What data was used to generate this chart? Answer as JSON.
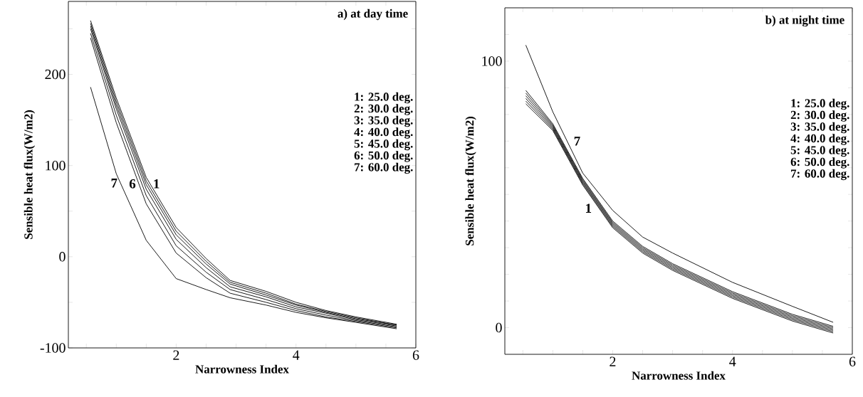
{
  "chart_data": [
    {
      "type": "line",
      "title": "a) at day time",
      "xlabel": "Narrowness Index",
      "ylabel": "Sensible heat flux(W/m2)",
      "xlim": [
        0.2,
        6
      ],
      "ylim": [
        -100,
        280
      ],
      "xticks": [
        {
          "value": 0.5,
          "label": null
        },
        {
          "value": 1,
          "label": null
        },
        {
          "value": 1.5,
          "label": null
        },
        2,
        {
          "value": 2.5,
          "label": null
        },
        {
          "value": 3,
          "label": null
        },
        {
          "value": 3.5,
          "label": null
        },
        4,
        {
          "value": 4.5,
          "label": null
        },
        {
          "value": 5,
          "label": null
        },
        {
          "value": 5.5,
          "label": null
        },
        6
      ],
      "yticks": [
        -100,
        {
          "value": -50,
          "label": null
        },
        0,
        {
          "value": 50,
          "label": null
        },
        100,
        {
          "value": 150,
          "label": null
        },
        200,
        {
          "value": 250,
          "label": null
        }
      ],
      "x": [
        0.57,
        1.0,
        1.5,
        2.0,
        2.5,
        2.9,
        3.5,
        4.0,
        4.5,
        5.0,
        5.68
      ],
      "series": [
        {
          "color": "#000000",
          "values": [
            259,
            174,
            87,
            32,
            -2,
            -26,
            -38,
            -50,
            -59,
            -66,
            -74
          ]
        },
        {
          "color": "#000000",
          "values": [
            256,
            170,
            83,
            28,
            -5,
            -28,
            -40,
            -52,
            -60,
            -67,
            -75
          ]
        },
        {
          "color": "#000000",
          "values": [
            253,
            166,
            79,
            24,
            -8,
            -30,
            -42,
            -53,
            -61,
            -68,
            -75
          ]
        },
        {
          "color": "#000000",
          "values": [
            250,
            162,
            74,
            19,
            -12,
            -33,
            -44,
            -55,
            -62,
            -69,
            -76
          ]
        },
        {
          "color": "#000000",
          "values": [
            245,
            155,
            67,
            12,
            -17,
            -36,
            -47,
            -57,
            -64,
            -70,
            -77
          ]
        },
        {
          "color": "#000000",
          "values": [
            240,
            147,
            58,
            4,
            -23,
            -40,
            -50,
            -59,
            -66,
            -71,
            -78
          ]
        },
        {
          "color": "#000000",
          "values": [
            186,
            91,
            18,
            -24,
            -36,
            -45,
            -53,
            -61,
            -67,
            -72,
            -79
          ]
        }
      ],
      "annotations": [
        {
          "text": "7",
          "x": 1.07,
          "y": 80.8
        },
        {
          "text": "6",
          "x": 1.376,
          "y": 80
        },
        {
          "text": "1",
          "x": 1.564,
          "y": 80
        },
        "1: 25.0 deg.",
        "2: 30.0 deg.",
        "3: 35.0 deg.",
        "4: 40.0 deg.",
        "5: 45.0 deg.",
        "6: 50.0 deg.",
        "7: 60.0 deg."
      ]
    },
    {
      "type": "line",
      "title": "b) at night time",
      "xlabel": "Narrowness Index",
      "ylabel": "Sensible heat flux(W/m2)",
      "xlim": [
        0.2,
        6
      ],
      "ylim": [
        -10,
        120
      ],
      "xticks": [
        {
          "value": 0.5,
          "label": null
        },
        {
          "value": 1,
          "label": null
        },
        {
          "value": 1.5,
          "label": null
        },
        2,
        {
          "value": 2.5,
          "label": null
        },
        {
          "value": 3,
          "label": null
        },
        {
          "value": 3.5,
          "label": null
        },
        4,
        {
          "value": 4.5,
          "label": null
        },
        {
          "value": 5,
          "label": null
        },
        {
          "value": 5.5,
          "label": null
        },
        6
      ],
      "yticks": [
        0,
        {
          "value": 10,
          "label": null
        },
        {
          "value": 20,
          "label": null
        },
        {
          "value": 30,
          "label": null
        },
        {
          "value": 40,
          "label": null
        },
        {
          "value": 50,
          "label": null
        },
        {
          "value": 60,
          "label": null
        },
        {
          "value": 70,
          "label": null
        },
        {
          "value": 80,
          "label": null
        },
        {
          "value": 90,
          "label": null
        },
        100,
        {
          "value": 110,
          "label": null
        }
      ],
      "x": [
        0.55,
        1.0,
        1.5,
        2.0,
        2.5,
        3.0,
        4.0,
        5.0,
        5.68
      ],
      "series": [
        {
          "color": "#000000",
          "values": [
            84,
            74,
            53.5,
            37.5,
            28,
            21.5,
            11,
            2.5,
            -2
          ]
        },
        {
          "color": "#000000",
          "values": [
            85,
            74.5,
            54,
            38,
            28.5,
            22,
            11.5,
            3,
            -1.5
          ]
        },
        {
          "color": "#000000",
          "values": [
            86,
            75,
            54.5,
            38.5,
            29,
            22.5,
            12,
            3.5,
            -1
          ]
        },
        {
          "color": "#000000",
          "values": [
            87,
            75.5,
            55,
            39,
            29.5,
            23,
            12.5,
            4,
            -0.5
          ]
        },
        {
          "color": "#000000",
          "values": [
            88,
            76,
            55.5,
            39.5,
            30,
            23.5,
            13,
            4.5,
            0
          ]
        },
        {
          "color": "#000000",
          "values": [
            89,
            76.5,
            56,
            40,
            30.5,
            24,
            13.5,
            5,
            0.5
          ]
        },
        {
          "color": "#000000",
          "values": [
            106,
            81,
            58,
            44,
            34,
            28,
            17,
            8,
            2
          ]
        }
      ],
      "annotations": [
        {
          "text": "7",
          "x": 1.3,
          "y": 67.2
        },
        {
          "text": "1",
          "x": 1.7,
          "y": 47.6
        },
        "1: 25.0 deg.",
        "2: 30.0 deg.",
        "3: 35.0 deg.",
        "4: 40.0 deg.",
        "5: 45.0 deg.",
        "6: 50.0 deg.",
        "7: 60.0 deg."
      ]
    }
  ]
}
